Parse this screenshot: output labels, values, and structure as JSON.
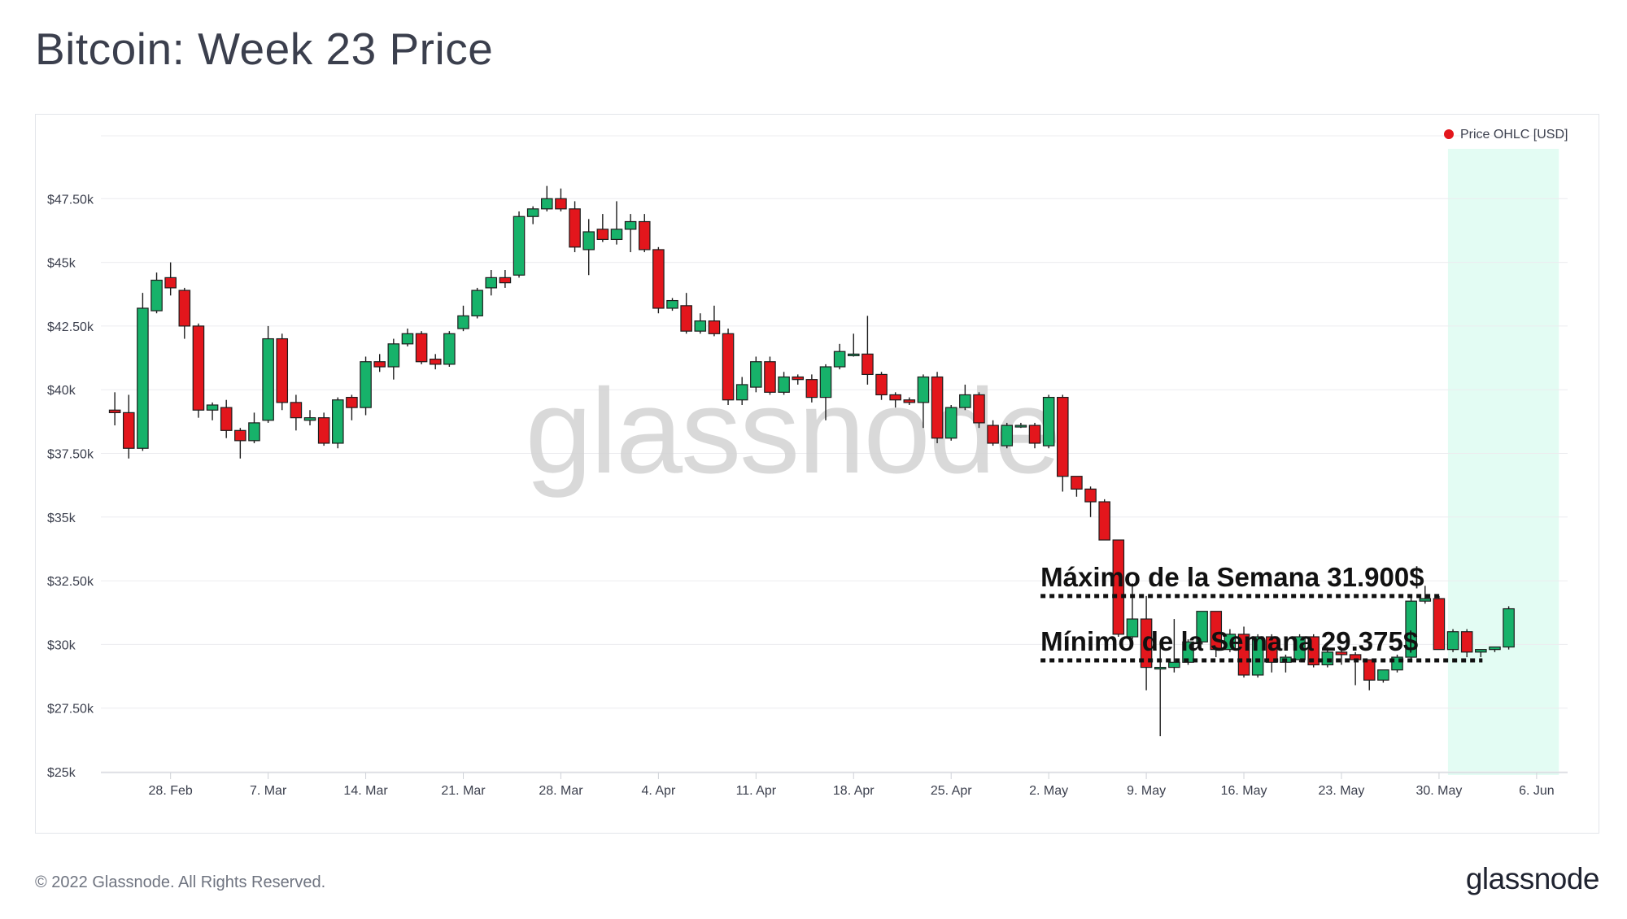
{
  "header": {
    "title": "Bitcoin: Week 23 Price"
  },
  "footer": {
    "copyright": "© 2022 Glassnode. All Rights Reserved.",
    "logo": "glassnode"
  },
  "watermark": "glassnode",
  "colors": {
    "up": "#17b26a",
    "down": "#e3161c",
    "highlight": "#e3fcf3",
    "text": "#3b3f4d"
  },
  "chart_data": {
    "type": "candlestick",
    "title": "Bitcoin: Week 23 Price",
    "legend": {
      "label": "Price OHLC [USD]",
      "placement": "top-right",
      "color": "#e3161c"
    },
    "yticks": [
      {
        "value": 25000,
        "label": "$25k"
      },
      {
        "value": 27500,
        "label": "$27.50k"
      },
      {
        "value": 30000,
        "label": "$30k"
      },
      {
        "value": 32500,
        "label": "$32.50k"
      },
      {
        "value": 35000,
        "label": "$35k"
      },
      {
        "value": 37500,
        "label": "$37.50k"
      },
      {
        "value": 40000,
        "label": "$40k"
      },
      {
        "value": 42500,
        "label": "$42.50k"
      },
      {
        "value": 45000,
        "label": "$45k"
      },
      {
        "value": 47500,
        "label": "$47.50k"
      }
    ],
    "ylim": [
      25000,
      50000
    ],
    "xlim": [
      "2022-02-23",
      "2022-06-07"
    ],
    "xticks": [
      {
        "date": "2022-02-28",
        "label": "28. Feb"
      },
      {
        "date": "2022-03-07",
        "label": "7. Mar"
      },
      {
        "date": "2022-03-14",
        "label": "14. Mar"
      },
      {
        "date": "2022-03-21",
        "label": "21. Mar"
      },
      {
        "date": "2022-03-28",
        "label": "28. Mar"
      },
      {
        "date": "2022-04-04",
        "label": "4. Apr"
      },
      {
        "date": "2022-04-11",
        "label": "11. Apr"
      },
      {
        "date": "2022-04-18",
        "label": "18. Apr"
      },
      {
        "date": "2022-04-25",
        "label": "25. Apr"
      },
      {
        "date": "2022-05-02",
        "label": "2. May"
      },
      {
        "date": "2022-05-09",
        "label": "9. May"
      },
      {
        "date": "2022-05-16",
        "label": "16. May"
      },
      {
        "date": "2022-05-23",
        "label": "23. May"
      },
      {
        "date": "2022-05-30",
        "label": "30. May"
      },
      {
        "date": "2022-06-06",
        "label": "6. Jun"
      }
    ],
    "highlight_range": [
      "2022-05-30",
      "2022-06-06"
    ],
    "ohlc": [
      {
        "date": "2022-02-24",
        "open": 39200,
        "high": 39900,
        "low": 38600,
        "close": 39100
      },
      {
        "date": "2022-02-25",
        "open": 39100,
        "high": 39800,
        "low": 37300,
        "close": 37700
      },
      {
        "date": "2022-02-26",
        "open": 37700,
        "high": 43800,
        "low": 37600,
        "close": 43200
      },
      {
        "date": "2022-02-27",
        "open": 43100,
        "high": 44600,
        "low": 43000,
        "close": 44300
      },
      {
        "date": "2022-02-28",
        "open": 44400,
        "high": 45000,
        "low": 43700,
        "close": 44000
      },
      {
        "date": "2022-03-01",
        "open": 43900,
        "high": 44000,
        "low": 42000,
        "close": 42500
      },
      {
        "date": "2022-03-02",
        "open": 42500,
        "high": 42600,
        "low": 38900,
        "close": 39200
      },
      {
        "date": "2022-03-03",
        "open": 39200,
        "high": 39500,
        "low": 38800,
        "close": 39400
      },
      {
        "date": "2022-03-04",
        "open": 39300,
        "high": 39600,
        "low": 38100,
        "close": 38400
      },
      {
        "date": "2022-03-05",
        "open": 38400,
        "high": 38500,
        "low": 37300,
        "close": 38000
      },
      {
        "date": "2022-03-06",
        "open": 38000,
        "high": 39100,
        "low": 37900,
        "close": 38700
      },
      {
        "date": "2022-03-07",
        "open": 38800,
        "high": 42500,
        "low": 38700,
        "close": 42000
      },
      {
        "date": "2022-03-08",
        "open": 42000,
        "high": 42200,
        "low": 39200,
        "close": 39500
      },
      {
        "date": "2022-03-09",
        "open": 39500,
        "high": 39800,
        "low": 38400,
        "close": 38900
      },
      {
        "date": "2022-03-10",
        "open": 38800,
        "high": 39200,
        "low": 38600,
        "close": 38900
      },
      {
        "date": "2022-03-11",
        "open": 38900,
        "high": 39100,
        "low": 37800,
        "close": 37900
      },
      {
        "date": "2022-03-12",
        "open": 37900,
        "high": 39700,
        "low": 37700,
        "close": 39600
      },
      {
        "date": "2022-03-13",
        "open": 39700,
        "high": 39800,
        "low": 38800,
        "close": 39300
      },
      {
        "date": "2022-03-14",
        "open": 39300,
        "high": 41300,
        "low": 39000,
        "close": 41100
      },
      {
        "date": "2022-03-15",
        "open": 41100,
        "high": 41400,
        "low": 40700,
        "close": 40900
      },
      {
        "date": "2022-03-16",
        "open": 40900,
        "high": 42000,
        "low": 40400,
        "close": 41800
      },
      {
        "date": "2022-03-17",
        "open": 41800,
        "high": 42400,
        "low": 41700,
        "close": 42200
      },
      {
        "date": "2022-03-18",
        "open": 42200,
        "high": 42300,
        "low": 41000,
        "close": 41100
      },
      {
        "date": "2022-03-19",
        "open": 41200,
        "high": 41400,
        "low": 40800,
        "close": 41000
      },
      {
        "date": "2022-03-20",
        "open": 41000,
        "high": 42300,
        "low": 40900,
        "close": 42200
      },
      {
        "date": "2022-03-21",
        "open": 42400,
        "high": 43300,
        "low": 42300,
        "close": 42900
      },
      {
        "date": "2022-03-22",
        "open": 42900,
        "high": 44000,
        "low": 42800,
        "close": 43900
      },
      {
        "date": "2022-03-23",
        "open": 44000,
        "high": 44700,
        "low": 43700,
        "close": 44400
      },
      {
        "date": "2022-03-24",
        "open": 44400,
        "high": 44700,
        "low": 44000,
        "close": 44200
      },
      {
        "date": "2022-03-25",
        "open": 44500,
        "high": 47000,
        "low": 44400,
        "close": 46800
      },
      {
        "date": "2022-03-26",
        "open": 46800,
        "high": 47200,
        "low": 46500,
        "close": 47100
      },
      {
        "date": "2022-03-27",
        "open": 47100,
        "high": 48000,
        "low": 47000,
        "close": 47500
      },
      {
        "date": "2022-03-28",
        "open": 47500,
        "high": 47900,
        "low": 47000,
        "close": 47100
      },
      {
        "date": "2022-03-29",
        "open": 47100,
        "high": 47400,
        "low": 45400,
        "close": 45600
      },
      {
        "date": "2022-03-30",
        "open": 45500,
        "high": 46700,
        "low": 44500,
        "close": 46200
      },
      {
        "date": "2022-03-31",
        "open": 46300,
        "high": 46900,
        "low": 45800,
        "close": 45900
      },
      {
        "date": "2022-04-01",
        "open": 45900,
        "high": 47400,
        "low": 45700,
        "close": 46300
      },
      {
        "date": "2022-04-02",
        "open": 46300,
        "high": 46900,
        "low": 45400,
        "close": 46600
      },
      {
        "date": "2022-04-03",
        "open": 46600,
        "high": 46900,
        "low": 45400,
        "close": 45500
      },
      {
        "date": "2022-04-04",
        "open": 45500,
        "high": 45600,
        "low": 43000,
        "close": 43200
      },
      {
        "date": "2022-04-05",
        "open": 43200,
        "high": 43600,
        "low": 43100,
        "close": 43500
      },
      {
        "date": "2022-04-06",
        "open": 43300,
        "high": 43800,
        "low": 42200,
        "close": 42300
      },
      {
        "date": "2022-04-07",
        "open": 42300,
        "high": 43000,
        "low": 42200,
        "close": 42700
      },
      {
        "date": "2022-04-08",
        "open": 42700,
        "high": 43300,
        "low": 42100,
        "close": 42200
      },
      {
        "date": "2022-04-09",
        "open": 42200,
        "high": 42400,
        "low": 39400,
        "close": 39600
      },
      {
        "date": "2022-04-10",
        "open": 39600,
        "high": 40500,
        "low": 39400,
        "close": 40200
      },
      {
        "date": "2022-04-11",
        "open": 40100,
        "high": 41300,
        "low": 39900,
        "close": 41100
      },
      {
        "date": "2022-04-12",
        "open": 41100,
        "high": 41300,
        "low": 39800,
        "close": 39900
      },
      {
        "date": "2022-04-13",
        "open": 39900,
        "high": 40700,
        "low": 39800,
        "close": 40500
      },
      {
        "date": "2022-04-14",
        "open": 40500,
        "high": 40600,
        "low": 40200,
        "close": 40400
      },
      {
        "date": "2022-04-15",
        "open": 40400,
        "high": 40600,
        "low": 39500,
        "close": 39700
      },
      {
        "date": "2022-04-16",
        "open": 39700,
        "high": 41000,
        "low": 38800,
        "close": 40900
      },
      {
        "date": "2022-04-17",
        "open": 40900,
        "high": 41800,
        "low": 40800,
        "close": 41500
      },
      {
        "date": "2022-04-18",
        "open": 41400,
        "high": 42200,
        "low": 41300,
        "close": 41400
      },
      {
        "date": "2022-04-19",
        "open": 41400,
        "high": 42900,
        "low": 40200,
        "close": 40600
      },
      {
        "date": "2022-04-20",
        "open": 40600,
        "high": 40700,
        "low": 39600,
        "close": 39800
      },
      {
        "date": "2022-04-21",
        "open": 39800,
        "high": 39900,
        "low": 39300,
        "close": 39600
      },
      {
        "date": "2022-04-22",
        "open": 39600,
        "high": 39700,
        "low": 39400,
        "close": 39500
      },
      {
        "date": "2022-04-23",
        "open": 39500,
        "high": 40600,
        "low": 38500,
        "close": 40500
      },
      {
        "date": "2022-04-24",
        "open": 40500,
        "high": 40700,
        "low": 37900,
        "close": 38100
      },
      {
        "date": "2022-04-25",
        "open": 38100,
        "high": 39400,
        "low": 38000,
        "close": 39300
      },
      {
        "date": "2022-04-26",
        "open": 39300,
        "high": 40200,
        "low": 39200,
        "close": 39800
      },
      {
        "date": "2022-04-27",
        "open": 39800,
        "high": 39900,
        "low": 38500,
        "close": 38700
      },
      {
        "date": "2022-04-28",
        "open": 38600,
        "high": 38800,
        "low": 37800,
        "close": 37900
      },
      {
        "date": "2022-04-29",
        "open": 37800,
        "high": 38700,
        "low": 37700,
        "close": 38600
      },
      {
        "date": "2022-04-30",
        "open": 38600,
        "high": 38700,
        "low": 38500,
        "close": 38600
      },
      {
        "date": "2022-05-01",
        "open": 38600,
        "high": 38700,
        "low": 37700,
        "close": 37900
      },
      {
        "date": "2022-05-02",
        "open": 37800,
        "high": 39800,
        "low": 37700,
        "close": 39700
      },
      {
        "date": "2022-05-03",
        "open": 39700,
        "high": 39800,
        "low": 36000,
        "close": 36600
      },
      {
        "date": "2022-05-04",
        "open": 36600,
        "high": 36600,
        "low": 35800,
        "close": 36100
      },
      {
        "date": "2022-05-05",
        "open": 36100,
        "high": 36200,
        "low": 35000,
        "close": 35600
      },
      {
        "date": "2022-05-06",
        "open": 35600,
        "high": 35700,
        "low": 34100,
        "close": 34100
      },
      {
        "date": "2022-05-07",
        "open": 34100,
        "high": 34100,
        "low": 30300,
        "close": 30400
      },
      {
        "date": "2022-05-08",
        "open": 30300,
        "high": 32400,
        "low": 30200,
        "close": 31000
      },
      {
        "date": "2022-05-09",
        "open": 31000,
        "high": 31900,
        "low": 28200,
        "close": 29100
      },
      {
        "date": "2022-05-10",
        "open": 29100,
        "high": 30000,
        "low": 26400,
        "close": 29100
      },
      {
        "date": "2022-05-11",
        "open": 29100,
        "high": 31000,
        "low": 28900,
        "close": 29300
      },
      {
        "date": "2022-05-12",
        "open": 29300,
        "high": 30200,
        "low": 29200,
        "close": 30100
      },
      {
        "date": "2022-05-13",
        "open": 30100,
        "high": 31300,
        "low": 30000,
        "close": 31300
      },
      {
        "date": "2022-05-14",
        "open": 31300,
        "high": 31300,
        "low": 29500,
        "close": 29800
      },
      {
        "date": "2022-05-15",
        "open": 29800,
        "high": 30600,
        "low": 29700,
        "close": 30400
      },
      {
        "date": "2022-05-16",
        "open": 30400,
        "high": 30700,
        "low": 28700,
        "close": 28800
      },
      {
        "date": "2022-05-17",
        "open": 28800,
        "high": 30400,
        "low": 28700,
        "close": 30300
      },
      {
        "date": "2022-05-18",
        "open": 30300,
        "high": 30400,
        "low": 28900,
        "close": 29300
      },
      {
        "date": "2022-05-19",
        "open": 29300,
        "high": 29600,
        "low": 28900,
        "close": 29500
      },
      {
        "date": "2022-05-20",
        "open": 29400,
        "high": 30400,
        "low": 29300,
        "close": 30300
      },
      {
        "date": "2022-05-21",
        "open": 30300,
        "high": 30400,
        "low": 29100,
        "close": 29200
      },
      {
        "date": "2022-05-22",
        "open": 29200,
        "high": 29900,
        "low": 29100,
        "close": 29700
      },
      {
        "date": "2022-05-23",
        "open": 29700,
        "high": 29800,
        "low": 29200,
        "close": 29600
      },
      {
        "date": "2022-05-24",
        "open": 29600,
        "high": 29700,
        "low": 28400,
        "close": 29400
      },
      {
        "date": "2022-05-25",
        "open": 29400,
        "high": 29400,
        "low": 28200,
        "close": 28600
      },
      {
        "date": "2022-05-26",
        "open": 28600,
        "high": 29000,
        "low": 28500,
        "close": 29000
      },
      {
        "date": "2022-05-27",
        "open": 29000,
        "high": 29600,
        "low": 28900,
        "close": 29500
      },
      {
        "date": "2022-05-28",
        "open": 29500,
        "high": 31900,
        "low": 29300,
        "close": 31700
      },
      {
        "date": "2022-05-29",
        "open": 31700,
        "high": 32300,
        "low": 31600,
        "close": 31800
      },
      {
        "date": "2022-05-30",
        "open": 31800,
        "high": 31900,
        "low": 29800,
        "close": 29800
      },
      {
        "date": "2022-05-31",
        "open": 29800,
        "high": 30600,
        "low": 29700,
        "close": 30500
      },
      {
        "date": "2022-06-01",
        "open": 30500,
        "high": 30600,
        "low": 29500,
        "close": 29700
      },
      {
        "date": "2022-06-02",
        "open": 29700,
        "high": 29800,
        "low": 29500,
        "close": 29800
      },
      {
        "date": "2022-06-03",
        "open": 29800,
        "high": 29900,
        "low": 29700,
        "close": 29900
      },
      {
        "date": "2022-06-04",
        "open": 29900,
        "high": 31500,
        "low": 29800,
        "close": 31400
      }
    ],
    "annotations": [
      {
        "text": "Máximo de la Semana 31.900$",
        "value": 31900,
        "from": "2022-05-02",
        "to": "2022-05-30"
      },
      {
        "text": "Mínimo de la Semana 29.375$",
        "value": 29375,
        "from": "2022-05-02",
        "to": "2022-06-02"
      }
    ]
  }
}
